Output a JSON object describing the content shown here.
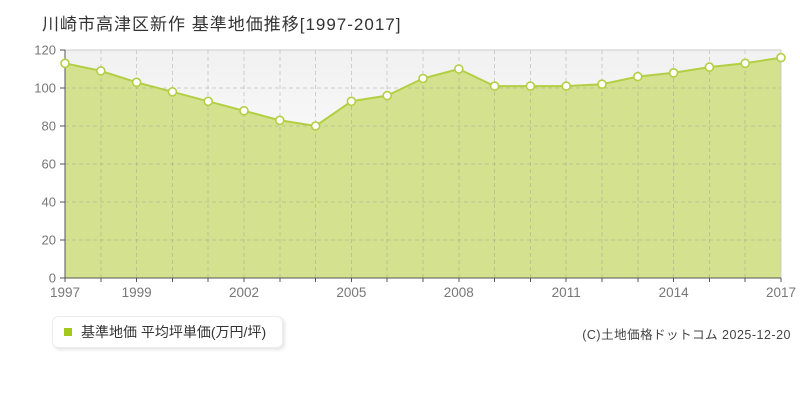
{
  "title": "川崎市高津区新作 基準地価推移[1997-2017]",
  "legend": {
    "label": "基準地価 平均坪単価(万円/坪)",
    "marker_color": "#a5c81f"
  },
  "copyright": "(C)土地価格ドットコム 2025-12-20",
  "chart_data": {
    "type": "area",
    "title": "川崎市高津区新作 基準地価推移[1997-2017]",
    "xlabel": "",
    "ylabel": "万円/坪",
    "x": [
      1997,
      1998,
      1999,
      2000,
      2001,
      2002,
      2003,
      2004,
      2005,
      2006,
      2007,
      2008,
      2009,
      2010,
      2011,
      2012,
      2013,
      2014,
      2015,
      2016,
      2017
    ],
    "series": [
      {
        "name": "基準地価 平均坪単価(万円/坪)",
        "values": [
          113,
          109,
          103,
          98,
          93,
          88,
          83,
          80,
          93,
          96,
          105,
          110,
          101,
          101,
          101,
          102,
          106,
          108,
          111,
          113,
          116
        ]
      }
    ],
    "ylim": [
      0,
      120
    ],
    "y_ticks": [
      0,
      20,
      40,
      60,
      80,
      100,
      120
    ],
    "x_tick_labels": [
      1997,
      1999,
      2002,
      2005,
      2008,
      2011,
      2014,
      2017
    ],
    "grid": true,
    "legend_position": "bottom-left",
    "colors": {
      "area_fill": "#d4e28f",
      "line": "#b2cf44",
      "marker_fill": "#ffffff",
      "marker_stroke": "#b2cf44",
      "grid": "#999999",
      "axis": "#555555",
      "tick_label": "#777777",
      "border": "#cccccc"
    }
  }
}
